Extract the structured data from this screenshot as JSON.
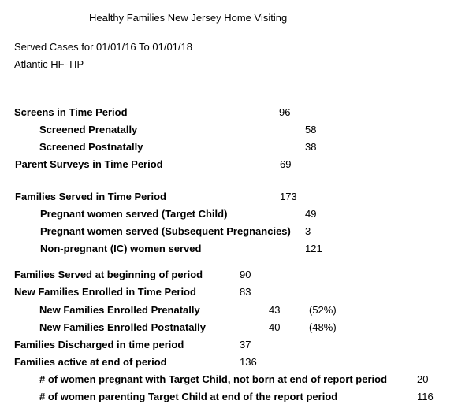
{
  "report": {
    "title": "Healthy Families New Jersey Home Visiting",
    "date_range": "Served Cases for 01/01/16 To 01/01/18",
    "site": "Atlantic HF-TIP"
  },
  "rows": {
    "screens": {
      "label": "Screens in Time Period",
      "value": "96"
    },
    "screened_prenatally": {
      "label": "Screened Prenatally",
      "value": "58"
    },
    "screened_postnatally": {
      "label": "Screened Postnatally",
      "value": "38"
    },
    "parent_surveys": {
      "label": "Parent Surveys in Time Period",
      "value": "69"
    },
    "families_served": {
      "label": "Families Served in Time Period",
      "value": "173"
    },
    "pregnant_target": {
      "label": "Pregnant women served (Target Child)",
      "value": "49"
    },
    "pregnant_subsequent": {
      "label": "Pregnant women served (Subsequent Pregnancies)",
      "value": "3"
    },
    "non_pregnant": {
      "label": "Non-pregnant (IC) women served",
      "value": "121"
    },
    "served_beginning": {
      "label": "Families Served at beginning of period",
      "value": "90"
    },
    "new_enrolled": {
      "label": "New Families Enrolled in Time Period",
      "value": "83"
    },
    "enrolled_prenatally": {
      "label": "New Families Enrolled Prenatally",
      "value": "43",
      "pct": "(52%)"
    },
    "enrolled_postnatally": {
      "label": "New Families Enrolled Postnatally",
      "value": "40",
      "pct": "(48%)"
    },
    "discharged": {
      "label": "Families Discharged in time period",
      "value": "37"
    },
    "active_end": {
      "label": "Families active at end of period",
      "value": "136"
    },
    "women_pregnant_not_born": {
      "label": "# of women pregnant with Target Child, not born at end of report period",
      "value": "20"
    },
    "women_parenting": {
      "label": "# of women parenting Target Child at end of the report period",
      "value": "116"
    }
  }
}
